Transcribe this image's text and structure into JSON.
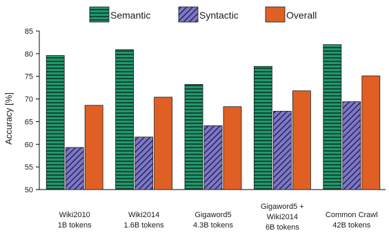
{
  "chart_data": {
    "type": "bar",
    "ylabel": "Accuracy [%]",
    "ylim": [
      50,
      85
    ],
    "yticks": [
      50,
      55,
      60,
      65,
      70,
      75,
      80,
      85
    ],
    "legend_position": "top-center",
    "grid": false,
    "categories": [
      [
        "Wiki2010",
        "1B tokens"
      ],
      [
        "Wiki2014",
        "1.6B tokens"
      ],
      [
        "Gigaword5",
        "4.3B tokens"
      ],
      [
        "Gigaword5 +",
        "Wiki2014",
        "6B tokens"
      ],
      [
        "Common Crawl",
        "42B tokens"
      ]
    ],
    "series": [
      {
        "name": "Semantic",
        "values": [
          79.6,
          80.9,
          73.2,
          77.2,
          82.0
        ],
        "color": "#1e9a6c",
        "pattern": "horizontal-stripes"
      },
      {
        "name": "Syntactic",
        "values": [
          59.3,
          61.6,
          64.1,
          67.3,
          69.4
        ],
        "color": "#7d77c8",
        "pattern": "diagonal-hatch"
      },
      {
        "name": "Overall",
        "values": [
          68.6,
          70.4,
          68.3,
          71.8,
          75.1
        ],
        "color": "#e05f24",
        "pattern": "solid"
      }
    ]
  }
}
